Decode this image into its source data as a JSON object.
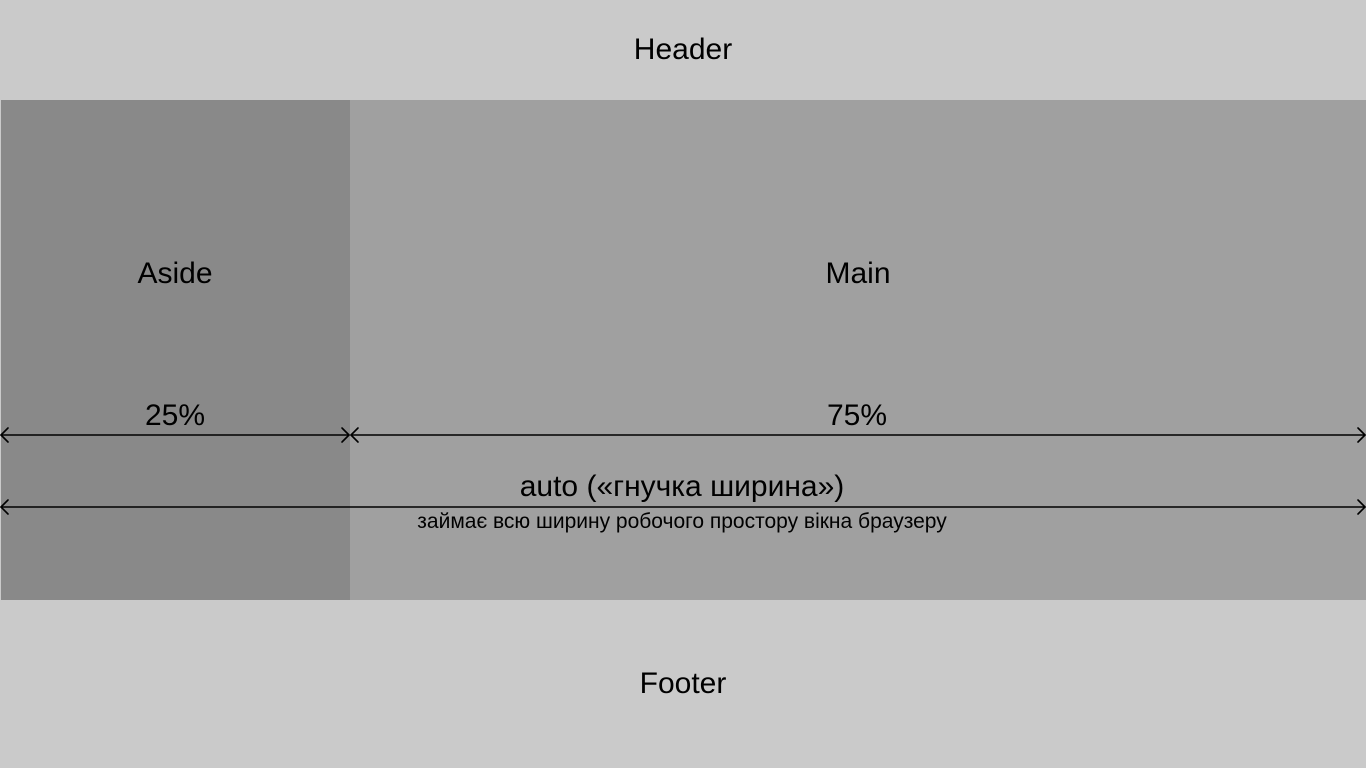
{
  "header": {
    "label": "Header"
  },
  "footer": {
    "label": "Footer"
  },
  "aside": {
    "label": "Aside",
    "width_label": "25%"
  },
  "main": {
    "label": "Main",
    "width_label": "75%"
  },
  "total": {
    "label": "auto («гнучка ширина»)",
    "note": "займає всю ширину робочого простору вікна браузеру"
  },
  "colors": {
    "header_footer": "#cacaca",
    "aside": "#898989",
    "main": "#a0a0a0",
    "lines": "#000000"
  }
}
